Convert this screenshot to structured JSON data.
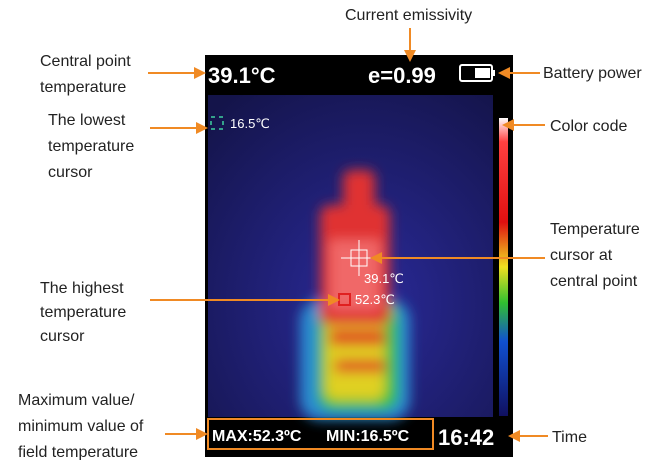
{
  "annotations": {
    "current_emissivity": "Current emissivity",
    "central_point_temperature": [
      "Central point",
      "temperature"
    ],
    "battery_power": "Battery power",
    "lowest_temperature_cursor": [
      "The lowest",
      "temperature",
      "cursor"
    ],
    "color_code": "Color code",
    "central_cursor": [
      "Temperature",
      "cursor at",
      "central point"
    ],
    "highest_temperature_cursor": [
      "The highest",
      "temperature",
      "cursor"
    ],
    "max_min_field": [
      "Maximum value/",
      "minimum value of",
      "field temperature"
    ],
    "time": "Time"
  },
  "screen": {
    "central_temperature": "39.1°C",
    "emissivity": "e=0.99",
    "lowest_cursor": "16.5℃",
    "center_cursor": "39.1℃",
    "highest_cursor": "52.3℃",
    "max": "MAX:52.3ºC",
    "min": "MIN:16.5ºC",
    "time": "16:42"
  }
}
